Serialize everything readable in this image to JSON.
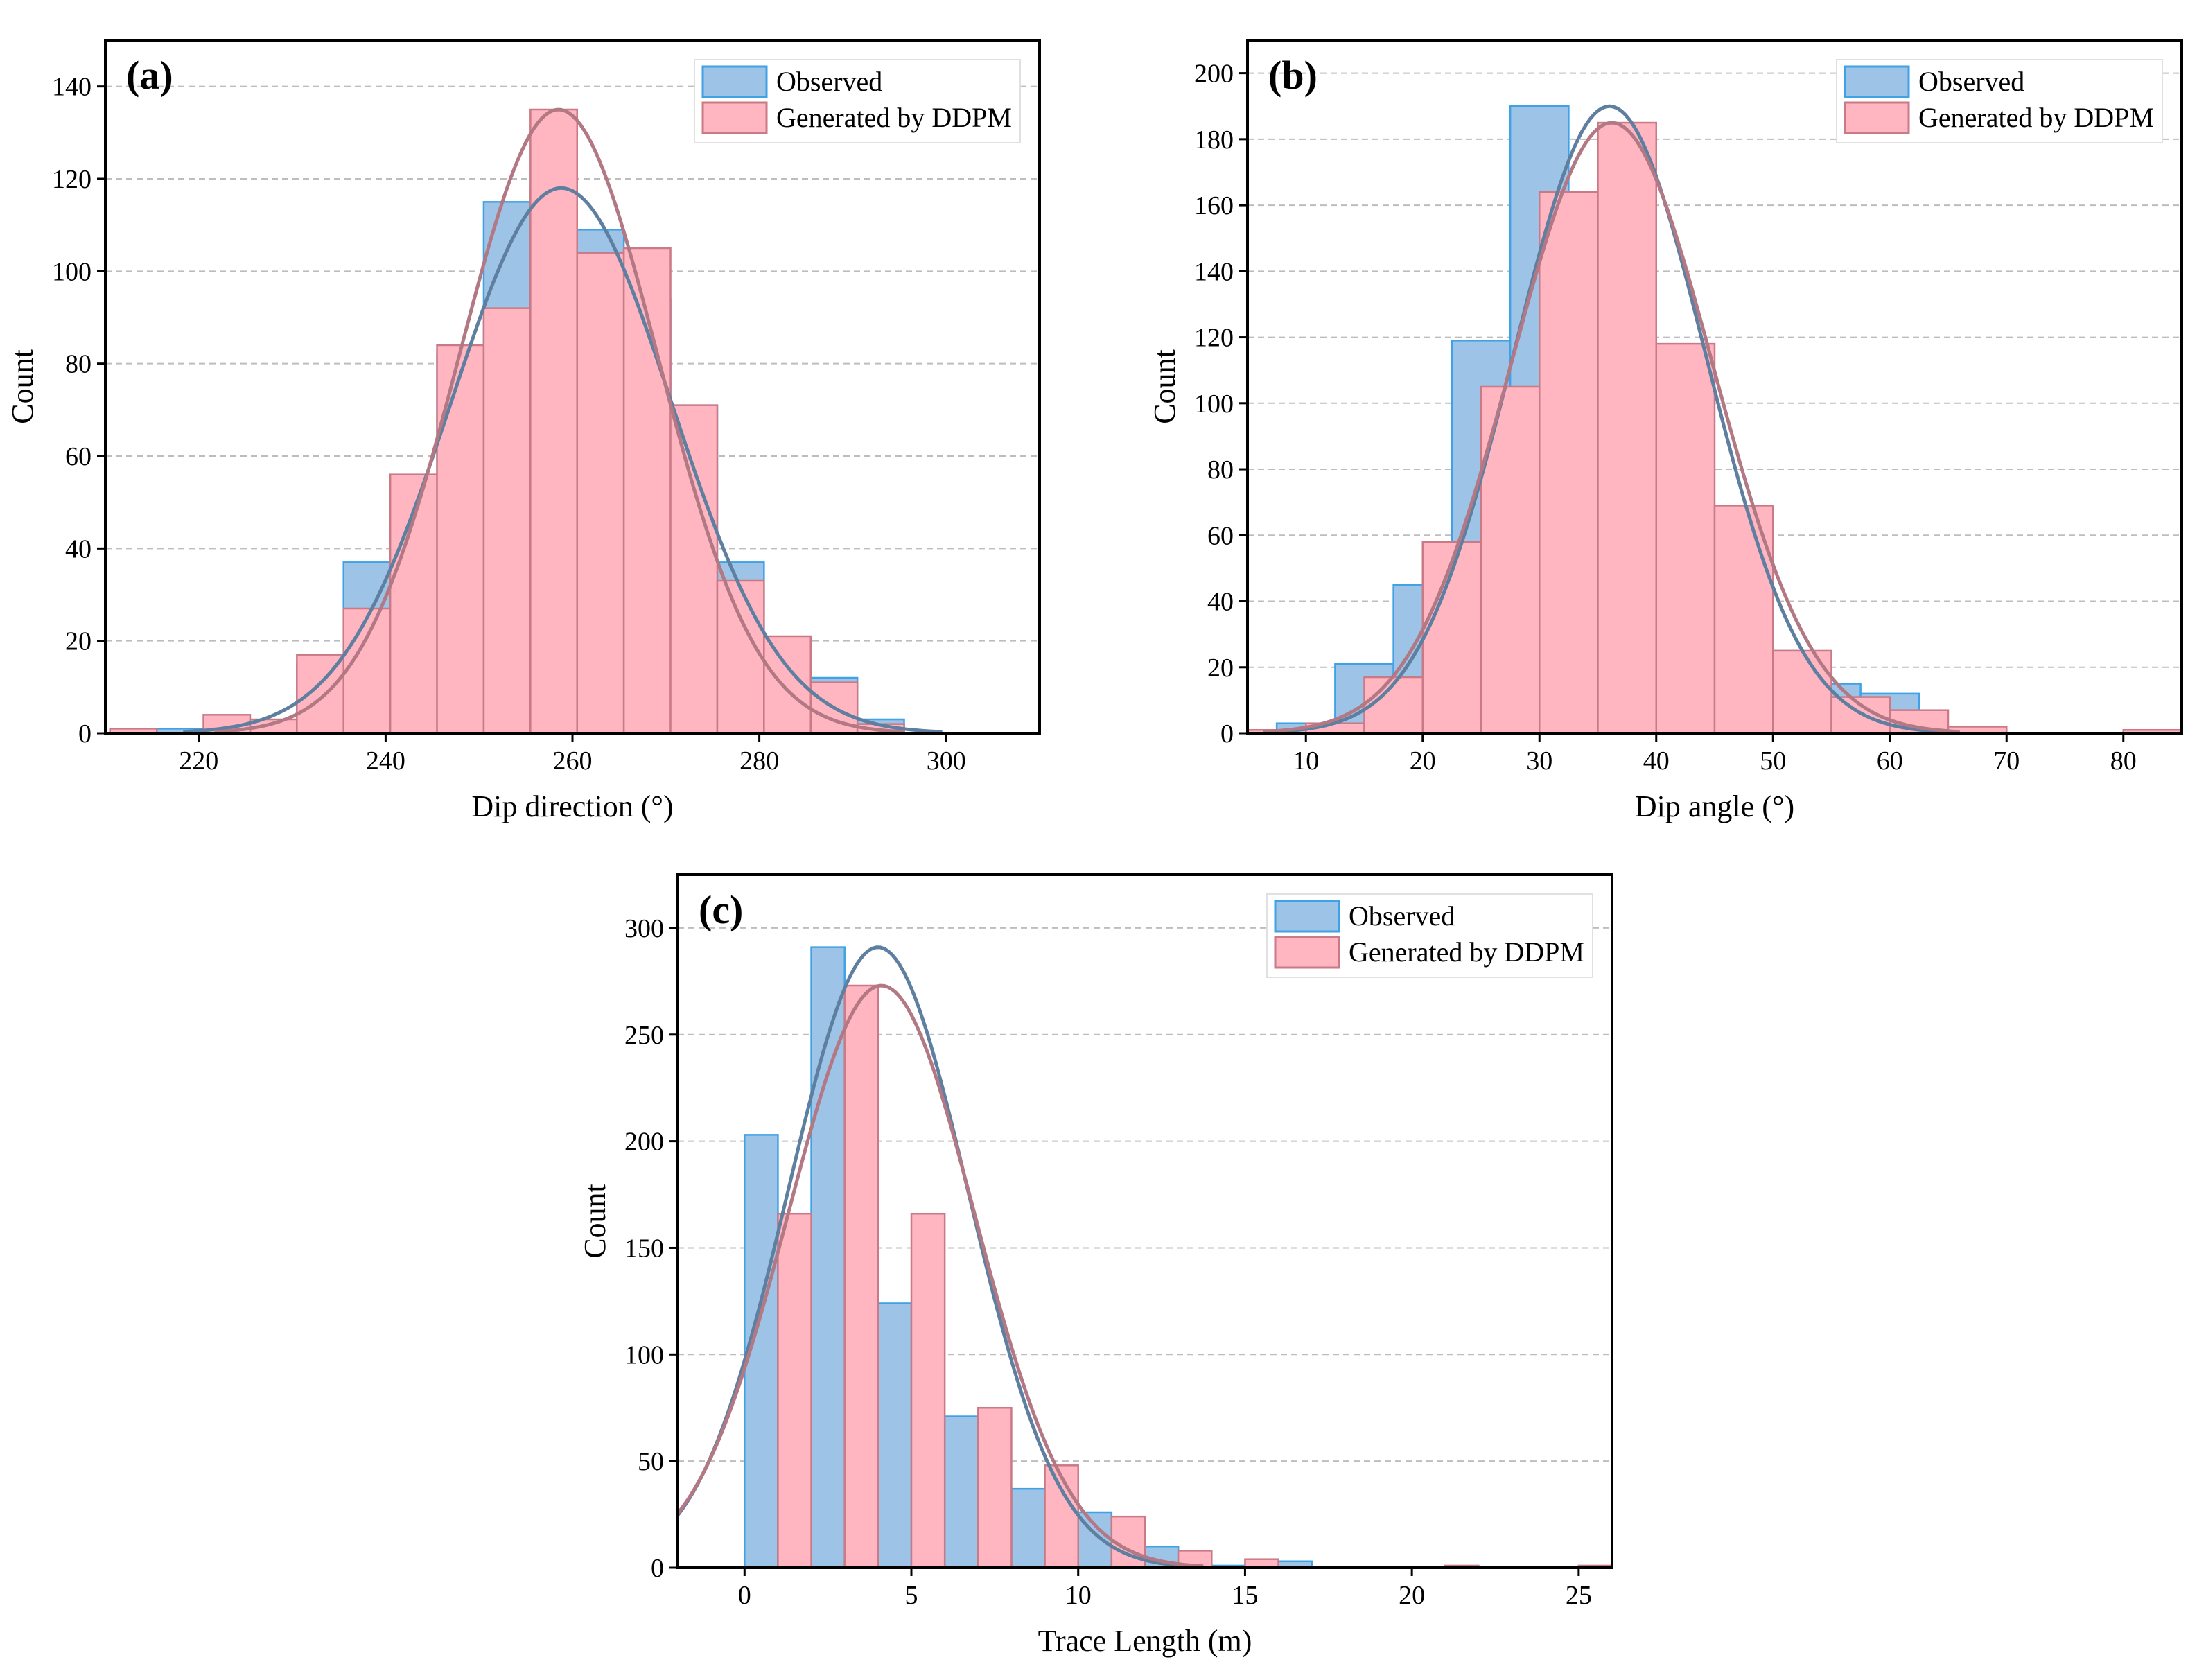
{
  "chart_data": [
    {
      "type": "bar",
      "panel_label": "(a)",
      "xlabel": "Dip direction (°)",
      "ylabel": "Count",
      "xlim": [
        210,
        310
      ],
      "ylim": [
        0,
        150
      ],
      "xticks": [
        220,
        240,
        260,
        280,
        300
      ],
      "yticks": [
        0,
        20,
        40,
        60,
        80,
        100,
        120,
        140
      ],
      "grid": true,
      "legend_position": "top-right",
      "bin_width": 5,
      "series": [
        {
          "name": "Observed",
          "color": "#9dc3e6",
          "edge": "#3fa2e6",
          "fit_color": "#5e7fa0",
          "x": [
            218,
            223,
            228,
            233,
            238,
            243,
            248,
            253,
            258,
            263,
            268,
            273,
            278,
            283,
            288,
            293
          ],
          "values": [
            1,
            0,
            2,
            15,
            37,
            52,
            82,
            115,
            118,
            109,
            94,
            71,
            37,
            16,
            12,
            3
          ],
          "fit": {
            "mean": 258.8,
            "sd": 11.8,
            "peak": 118
          }
        },
        {
          "name": "Generated by DDPM",
          "color": "#ffb6c1",
          "edge": "#c97a86",
          "fit_color": "#b27883",
          "x": [
            213,
            218,
            223,
            228,
            233,
            238,
            243,
            248,
            253,
            258,
            263,
            268,
            273,
            278,
            283,
            288,
            293
          ],
          "values": [
            1,
            0,
            4,
            3,
            17,
            27,
            56,
            84,
            92,
            135,
            104,
            105,
            71,
            33,
            21,
            11,
            2
          ],
          "fit": {
            "mean": 258.5,
            "sd": 10.6,
            "peak": 135
          }
        }
      ]
    },
    {
      "type": "bar",
      "panel_label": "(b)",
      "xlabel": "Dip angle (°)",
      "ylabel": "Count",
      "xlim": [
        5,
        85
      ],
      "ylim": [
        0,
        210
      ],
      "xticks": [
        10,
        20,
        30,
        40,
        50,
        60,
        70,
        80
      ],
      "yticks": [
        0,
        20,
        40,
        60,
        80,
        100,
        120,
        140,
        160,
        180,
        200
      ],
      "grid": true,
      "legend_position": "top-right",
      "bin_width": 5,
      "series": [
        {
          "name": "Observed",
          "color": "#9dc3e6",
          "edge": "#3fa2e6",
          "fit_color": "#5e7fa0",
          "x": [
            10,
            15,
            20,
            25,
            30,
            35,
            40,
            45,
            50,
            55,
            60
          ],
          "values": [
            3,
            21,
            45,
            119,
            190,
            160,
            111,
            65,
            25,
            15,
            12
          ],
          "fit": {
            "mean": 36.0,
            "sd": 8.2,
            "peak": 190
          }
        },
        {
          "name": "Generated by DDPM",
          "color": "#ffb6c1",
          "edge": "#c97a86",
          "fit_color": "#b27883",
          "x": [
            7.5,
            12.5,
            17.5,
            22.5,
            27.5,
            32.5,
            37.5,
            42.5,
            47.5,
            52.5,
            57.5,
            62.5,
            67.5,
            72.5,
            77.5,
            82.5
          ],
          "values": [
            1,
            3,
            17,
            58,
            105,
            164,
            185,
            118,
            69,
            25,
            11,
            7,
            2,
            0,
            0,
            1
          ],
          "fit": {
            "mean": 36.2,
            "sd": 8.6,
            "peak": 185
          }
        }
      ]
    },
    {
      "type": "bar",
      "panel_label": "(c)",
      "xlabel": "Trace Length (m)",
      "ylabel": "Count",
      "xlim": [
        -2,
        26
      ],
      "ylim": [
        0,
        325
      ],
      "xticks": [
        0,
        5,
        10,
        15,
        20,
        25
      ],
      "yticks": [
        0,
        50,
        100,
        150,
        200,
        250,
        300
      ],
      "grid": true,
      "legend_position": "top-right",
      "bin_width": 1,
      "series": [
        {
          "name": "Observed",
          "color": "#9dc3e6",
          "edge": "#3fa2e6",
          "fit_color": "#5e7fa0",
          "x": [
            0.5,
            2.5,
            4.5,
            6.5,
            8.5,
            10.5,
            12.5,
            14.5,
            16.5
          ],
          "values": [
            203,
            291,
            124,
            71,
            37,
            26,
            10,
            1,
            3
          ],
          "fit": {
            "mean": 4.0,
            "sd": 2.7,
            "peak": 291
          }
        },
        {
          "name": "Generated by DDPM",
          "color": "#ffb6c1",
          "edge": "#c97a86",
          "fit_color": "#b27883",
          "x": [
            1.5,
            3.5,
            5.5,
            7.5,
            9.5,
            11.5,
            13.5,
            15.5,
            21.5,
            25.5
          ],
          "values": [
            166,
            273,
            166,
            75,
            48,
            24,
            8,
            4,
            1,
            1
          ],
          "fit": {
            "mean": 4.1,
            "sd": 2.8,
            "peak": 273
          }
        }
      ]
    }
  ]
}
